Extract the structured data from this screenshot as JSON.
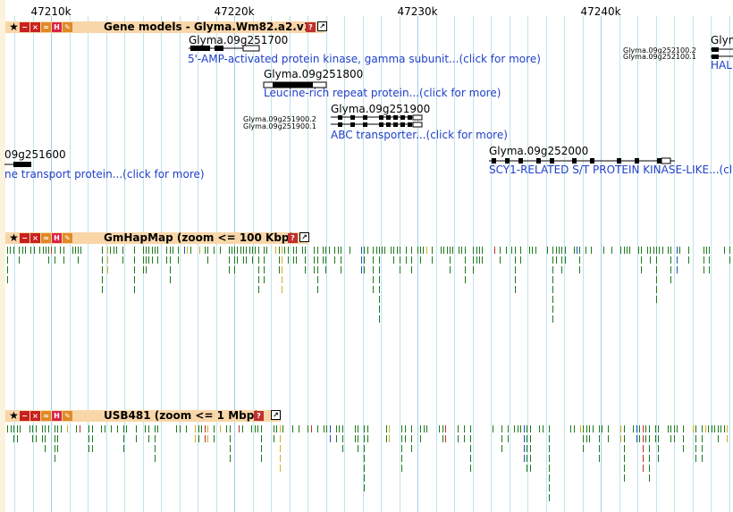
{
  "ruler": {
    "labels": [
      "47210k",
      "47220k",
      "47230k",
      "47240k"
    ]
  },
  "tracks": {
    "gene_models": {
      "title": "Gene models - Glyma.Wm82.a2.v1",
      "help": "?",
      "genes": [
        {
          "name": "Glyma.09g251700",
          "desc": "5'-AMP-activated protein kinase, gamma subunit...(click for more)"
        },
        {
          "name": "Glyma.09g251800",
          "desc": "Leucine-rich repeat protein...(click for more)"
        },
        {
          "name": "Glyma.09g251900",
          "desc": "ABC transporter...(click for more)",
          "isoforms": [
            "Glyma.09g251900.2",
            "Glyma.09g251900.1"
          ]
        },
        {
          "name": "Glyma.09g252000",
          "desc": "SCY1-RELATED S/T PROTEIN KINASE-LIKE...(cl"
        },
        {
          "name": "09g251600",
          "desc": "ne transport protein...(click for more)"
        },
        {
          "name": "Glym",
          "desc": "HAL",
          "isoforms": [
            "Glyma.09g252100.2",
            "Glyma.09g252100.1"
          ]
        }
      ]
    },
    "gmhapmap": {
      "title": "GmHapMap (zoom <= 100 Kbp)",
      "help": "?"
    },
    "usb481": {
      "title": "USB481 (zoom <= 1 Mbp)",
      "help": "?"
    }
  },
  "colors": {
    "header_bg": "#f9d6a8",
    "link": "#2040c8",
    "snp_green": "#1d7a1d",
    "snp_yellow": "#d4b020",
    "snp_blue": "#2050c0",
    "snp_red": "#c03030",
    "grid": "#bfe3ee"
  },
  "icons": [
    "star-icon",
    "minimize-icon",
    "close-icon",
    "rss-icon",
    "histogram-icon",
    "wrench-icon",
    "help-icon",
    "popout-icon"
  ]
}
